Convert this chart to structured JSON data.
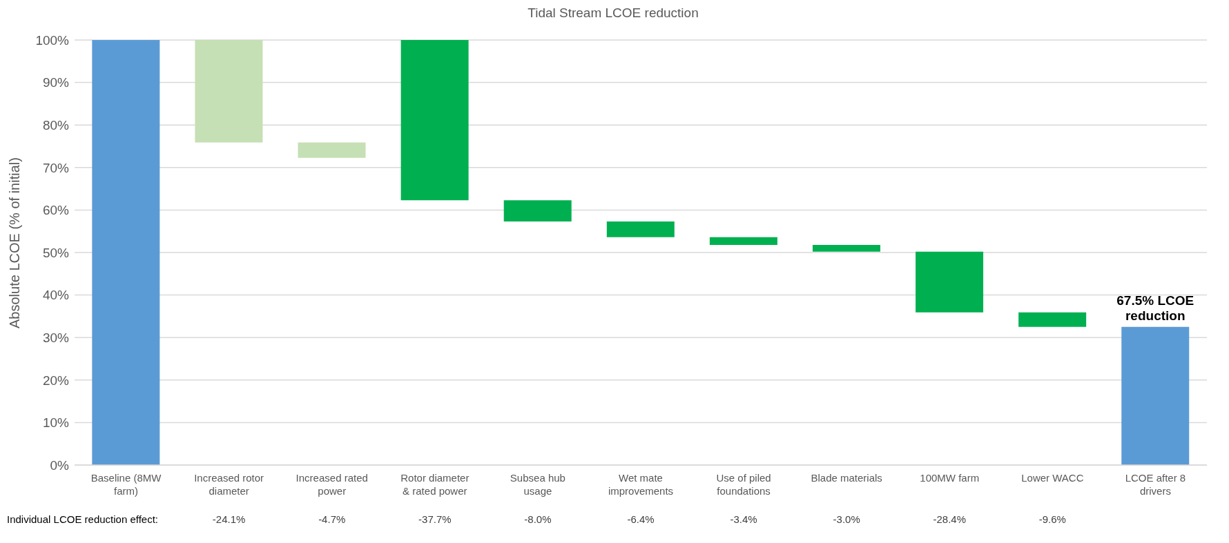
{
  "chart_data": {
    "type": "bar",
    "title": "Tidal Stream LCOE reduction",
    "ylabel": "Absolute LCOE (% of initial)",
    "categories": [
      "Baseline (8MW farm)",
      "Increased rotor diameter",
      "Increased rated power",
      "Rotor diameter & rated power",
      "Subsea hub usage",
      "Wet mate improvements",
      "Use of piled foundations",
      "Blade materials",
      "100MW farm",
      "Lower WACC",
      "LCOE after 8 drivers"
    ],
    "base": [
      0,
      100,
      75.9,
      100,
      62.3,
      57.3,
      53.6,
      51.8,
      50.2,
      35.9,
      0
    ],
    "values": [
      100,
      -24.1,
      -3.6,
      -37.7,
      -5.0,
      -3.7,
      -1.8,
      -1.6,
      -14.3,
      -3.4,
      32.5
    ],
    "colors": [
      "#5b9bd5",
      "#c5e0b4",
      "#c5e0b4",
      "#00b050",
      "#00b050",
      "#00b050",
      "#00b050",
      "#00b050",
      "#00b050",
      "#00b050",
      "#5b9bd5"
    ],
    "ylim": [
      0,
      100
    ],
    "yticks": [
      {
        "value": 0,
        "label": "0%"
      },
      {
        "value": 10,
        "label": "10%"
      },
      {
        "value": 20,
        "label": "20%"
      },
      {
        "value": 30,
        "label": "30%"
      },
      {
        "value": 40,
        "label": "40%"
      },
      {
        "value": 50,
        "label": "50%"
      },
      {
        "value": 60,
        "label": "60%"
      },
      {
        "value": 70,
        "label": "70%"
      },
      {
        "value": 80,
        "label": "80%"
      },
      {
        "value": 90,
        "label": "90%"
      },
      {
        "value": 100,
        "label": "100%"
      }
    ],
    "grid": "y",
    "legend": false,
    "annotations": [
      {
        "text": "67.5% LCOE reduction",
        "x": "LCOE after 8 drivers",
        "y": 32.5
      },
      "Individual LCOE reduction effect:",
      "-24.1%",
      "-4.7%",
      "-37.7%",
      "-8.0%",
      "-6.4%",
      "-3.4%",
      "-3.0%",
      "-28.4%",
      "-9.6%"
    ]
  }
}
